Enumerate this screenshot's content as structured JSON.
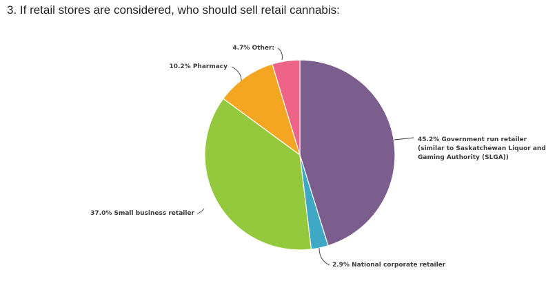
{
  "question": {
    "title": "3. If retail stores are considered, who should sell retail cannabis:"
  },
  "chart_data": {
    "type": "pie",
    "title": "3. If retail stores are considered, who should sell retail cannabis:",
    "slices": [
      {
        "label_lines": [
          "45.2% Government run retailer",
          "(similar to Saskatchewan Liquor and",
          "Gaming Authority (SLGA))"
        ],
        "category": "Government run retailer (similar to Saskatchewan Liquor and Gaming Authority (SLGA))",
        "value": 45.2,
        "color": "#7b5e8e"
      },
      {
        "label_lines": [
          "2.9% National corporate retailer"
        ],
        "category": "National corporate retailer",
        "value": 2.9,
        "color": "#3fa8c5"
      },
      {
        "label_lines": [
          "37.0% Small business retailer"
        ],
        "category": "Small business retailer",
        "value": 37.0,
        "color": "#95c93d"
      },
      {
        "label_lines": [
          "10.2% Pharmacy"
        ],
        "category": "Pharmacy",
        "value": 10.2,
        "color": "#f4a623"
      },
      {
        "label_lines": [
          "4.7% Other:"
        ],
        "category": "Other:",
        "value": 4.7,
        "color": "#ee6388"
      }
    ]
  }
}
